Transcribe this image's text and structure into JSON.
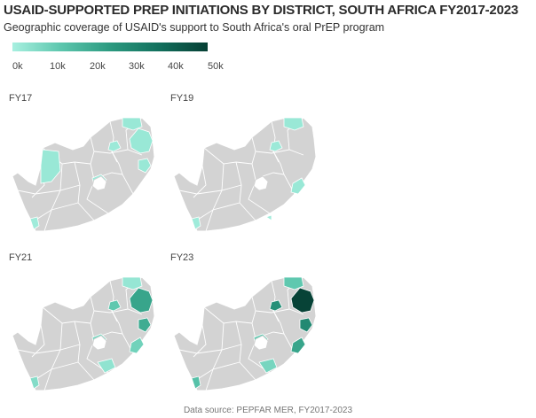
{
  "title": "USAID-SUPPORTED PREP INITIATIONS BY DISTRICT, SOUTH AFRICA FY2017-2023",
  "subtitle": "Geographic coverage of USAID's support to South Africa's oral PrEP program",
  "legend": {
    "ticks": [
      "0k",
      "10k",
      "20k",
      "30k",
      "40k",
      "50k"
    ],
    "min": 0,
    "max": 50000,
    "colors": [
      "#a8f0e0",
      "#5cc6ad",
      "#2c9a80",
      "#12705d",
      "#063f34"
    ]
  },
  "colors": {
    "no_data": "#d3d3d3",
    "border": "#ffffff"
  },
  "panels": [
    {
      "label": "FY17",
      "districts": [
        {
          "id": "northwest_large",
          "value": 2500
        },
        {
          "id": "limpopo_north",
          "value": 2500
        },
        {
          "id": "mpumalanga_east",
          "value": 2500
        },
        {
          "id": "gauteng_a",
          "value": 2000
        },
        {
          "id": "kzn_north",
          "value": 2500
        },
        {
          "id": "freestate_center",
          "value": 2000
        },
        {
          "id": "westerncape_tip",
          "value": 1500
        }
      ]
    },
    {
      "label": "FY19",
      "districts": [
        {
          "id": "limpopo_north",
          "value": 2500
        },
        {
          "id": "gauteng_a",
          "value": 2000
        },
        {
          "id": "kzn_coast",
          "value": 2500
        },
        {
          "id": "westerncape_tip",
          "value": 1500
        },
        {
          "id": "easterncape_dot",
          "value": 1500
        }
      ]
    },
    {
      "label": "FY21",
      "districts": [
        {
          "id": "limpopo_north",
          "value": 3000
        },
        {
          "id": "gauteng_a",
          "value": 12000
        },
        {
          "id": "mpumalanga_east",
          "value": 22000
        },
        {
          "id": "kzn_north",
          "value": 20000
        },
        {
          "id": "kzn_coast",
          "value": 9000
        },
        {
          "id": "freestate_center",
          "value": 8000
        },
        {
          "id": "easterncape_mid",
          "value": 4000
        },
        {
          "id": "westerncape_tip",
          "value": 6000
        }
      ]
    },
    {
      "label": "FY23",
      "districts": [
        {
          "id": "limpopo_north",
          "value": 12000
        },
        {
          "id": "gauteng_a",
          "value": 28000
        },
        {
          "id": "mpumalanga_east",
          "value": 49000
        },
        {
          "id": "kzn_north",
          "value": 30000
        },
        {
          "id": "kzn_coast",
          "value": 22000
        },
        {
          "id": "freestate_center",
          "value": 12000
        },
        {
          "id": "easterncape_mid",
          "value": 8000
        },
        {
          "id": "westerncape_tip",
          "value": 14000
        }
      ]
    }
  ],
  "source": "Data source: PEPFAR MER, FY2017-2023"
}
